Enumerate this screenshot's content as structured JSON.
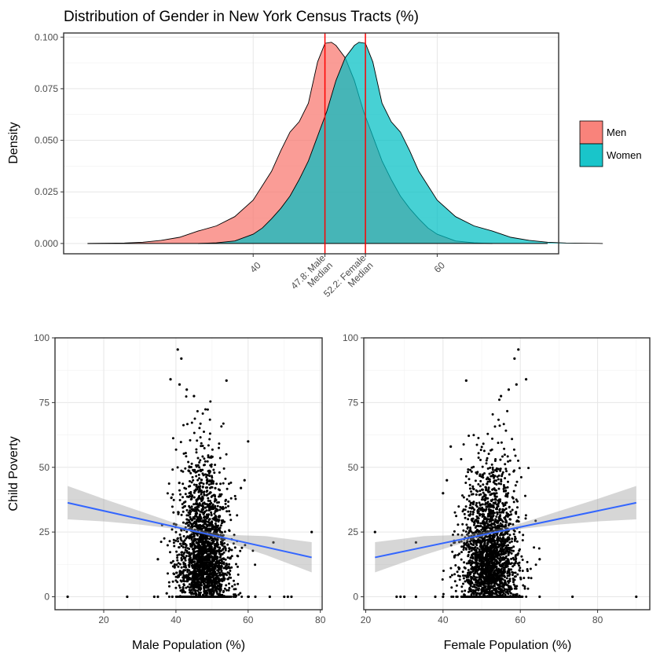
{
  "chart_data": [
    {
      "type": "area",
      "title": "Distribution of Gender in New York Census Tracts (%)",
      "xlabel": "",
      "ylabel": "Density",
      "xlim": [
        19.4,
        73.2
      ],
      "ylim": [
        -0.005,
        0.102
      ],
      "y_ticks": [
        0.0,
        0.025,
        0.05,
        0.075,
        0.1
      ],
      "y_tick_labels": [
        "0.000",
        "0.025",
        "0.050",
        "0.075",
        "0.100"
      ],
      "x_ticks": [
        40,
        47.8,
        52.2,
        60
      ],
      "x_tick_labels": [
        [
          "40"
        ],
        [
          "47.8: Male",
          "Median"
        ],
        [
          "52.2: Female",
          "Median"
        ],
        [
          "60"
        ]
      ],
      "medians": [
        {
          "value": 47.8,
          "color": "#ff0000"
        },
        {
          "value": 52.2,
          "color": "#ff0000"
        }
      ],
      "grid": true,
      "legend_position": "right",
      "series": [
        {
          "name": "Men",
          "color": "#F8766D",
          "points": [
            [
              22,
              0
            ],
            [
              26,
              0.0002
            ],
            [
              28,
              0.0006
            ],
            [
              30,
              0.0015
            ],
            [
              32,
              0.003
            ],
            [
              34,
              0.006
            ],
            [
              36,
              0.0085
            ],
            [
              38,
              0.013
            ],
            [
              40,
              0.021
            ],
            [
              42,
              0.035
            ],
            [
              43,
              0.045
            ],
            [
              44,
              0.054
            ],
            [
              45,
              0.059
            ],
            [
              46,
              0.068
            ],
            [
              47,
              0.088
            ],
            [
              47.8,
              0.097
            ],
            [
              48.5,
              0.0975
            ],
            [
              49,
              0.096
            ],
            [
              50,
              0.09
            ],
            [
              51,
              0.079
            ],
            [
              52,
              0.064
            ],
            [
              53,
              0.052
            ],
            [
              54,
              0.04
            ],
            [
              55,
              0.031
            ],
            [
              56,
              0.023
            ],
            [
              57,
              0.017
            ],
            [
              58,
              0.012
            ],
            [
              59,
              0.0075
            ],
            [
              60,
              0.0045
            ],
            [
              62,
              0.0012
            ],
            [
              64,
              0.0003
            ],
            [
              66,
              0
            ]
          ]
        },
        {
          "name": "Women",
          "color": "#00BFC4",
          "points": [
            [
              34,
              0
            ],
            [
              36,
              0.0003
            ],
            [
              38,
              0.0012
            ],
            [
              40,
              0.0045
            ],
            [
              41,
              0.0075
            ],
            [
              42,
              0.012
            ],
            [
              43,
              0.017
            ],
            [
              44,
              0.023
            ],
            [
              45,
              0.031
            ],
            [
              46,
              0.04
            ],
            [
              47,
              0.052
            ],
            [
              48,
              0.064
            ],
            [
              49,
              0.079
            ],
            [
              50,
              0.09
            ],
            [
              51,
              0.096
            ],
            [
              51.5,
              0.0975
            ],
            [
              52.2,
              0.097
            ],
            [
              53,
              0.088
            ],
            [
              54,
              0.068
            ],
            [
              55,
              0.059
            ],
            [
              56,
              0.054
            ],
            [
              57,
              0.045
            ],
            [
              58,
              0.035
            ],
            [
              60,
              0.021
            ],
            [
              62,
              0.013
            ],
            [
              64,
              0.0085
            ],
            [
              66,
              0.006
            ],
            [
              68,
              0.003
            ],
            [
              70,
              0.0015
            ],
            [
              72,
              0.0006
            ],
            [
              74,
              0.0002
            ],
            [
              78,
              0
            ]
          ]
        }
      ]
    },
    {
      "type": "scatter",
      "title": "",
      "xlabel": "Male Population (%)",
      "ylabel": "Child Poverty",
      "xlim": [
        6.5,
        80.5
      ],
      "ylim": [
        -5,
        100
      ],
      "x_ticks": [
        20,
        40,
        60,
        80
      ],
      "y_ticks": [
        0,
        25,
        50,
        75,
        100
      ],
      "grid": true,
      "trend_line": {
        "color": "#3366FF",
        "points": [
          [
            10,
            36.3
          ],
          [
            77.6,
            15.2
          ]
        ],
        "band": [
          [
            10,
            29.9,
            42.8
          ],
          [
            20,
            29.1,
            37.8
          ],
          [
            30,
            27.9,
            33.1
          ],
          [
            40,
            26.2,
            28.3
          ],
          [
            47.8,
            24.1,
            25.4
          ],
          [
            55,
            20.7,
            23.9
          ],
          [
            65,
            16.1,
            23.4
          ],
          [
            77.6,
            9.4,
            21.1
          ]
        ]
      },
      "points": [
        [
          10,
          0
        ],
        [
          26.5,
          0
        ],
        [
          34,
          0
        ],
        [
          35,
          0
        ],
        [
          39,
          0
        ],
        [
          60,
          0
        ],
        [
          62,
          0
        ],
        [
          66,
          0
        ],
        [
          70,
          0
        ],
        [
          71,
          0
        ],
        [
          72,
          0
        ],
        [
          77.6,
          25
        ],
        [
          59,
          45
        ],
        [
          60,
          60
        ],
        [
          58,
          42
        ],
        [
          40.5,
          95.5
        ],
        [
          41.5,
          92
        ],
        [
          38.5,
          84
        ],
        [
          41,
          82
        ],
        [
          54,
          83.5
        ],
        [
          43,
          80
        ],
        [
          45,
          77.5
        ],
        [
          35,
          14.5
        ],
        [
          67,
          21
        ]
      ]
    },
    {
      "type": "scatter",
      "title": "",
      "xlabel": "Female Population (%)",
      "ylabel": "",
      "xlim": [
        19.5,
        93.5
      ],
      "ylim": [
        -5,
        100
      ],
      "x_ticks": [
        20,
        40,
        60,
        80
      ],
      "y_ticks": [
        0,
        25,
        50,
        75,
        100
      ],
      "grid": true,
      "trend_line": {
        "color": "#3366FF",
        "points": [
          [
            22.4,
            15.2
          ],
          [
            90,
            36.3
          ]
        ],
        "band": [
          [
            22.4,
            9.4,
            21.1
          ],
          [
            35,
            16.1,
            23.4
          ],
          [
            45,
            20.7,
            23.9
          ],
          [
            52.2,
            24.1,
            25.4
          ],
          [
            60,
            26.2,
            28.3
          ],
          [
            70,
            27.9,
            33.1
          ],
          [
            80,
            29.1,
            37.8
          ],
          [
            90,
            29.9,
            42.8
          ]
        ]
      },
      "points": [
        [
          22.4,
          25
        ],
        [
          28,
          0
        ],
        [
          29,
          0
        ],
        [
          30,
          0
        ],
        [
          33,
          0
        ],
        [
          38,
          0
        ],
        [
          40,
          0
        ],
        [
          65,
          0
        ],
        [
          73.5,
          0
        ],
        [
          90,
          0
        ],
        [
          41,
          45
        ],
        [
          40,
          40
        ],
        [
          42,
          58
        ],
        [
          59.5,
          95.5
        ],
        [
          58.5,
          92
        ],
        [
          61.5,
          84
        ],
        [
          59,
          82
        ],
        [
          46,
          83.5
        ],
        [
          57,
          80
        ],
        [
          55,
          77.5
        ],
        [
          65,
          14.5
        ],
        [
          33,
          21
        ]
      ]
    }
  ]
}
